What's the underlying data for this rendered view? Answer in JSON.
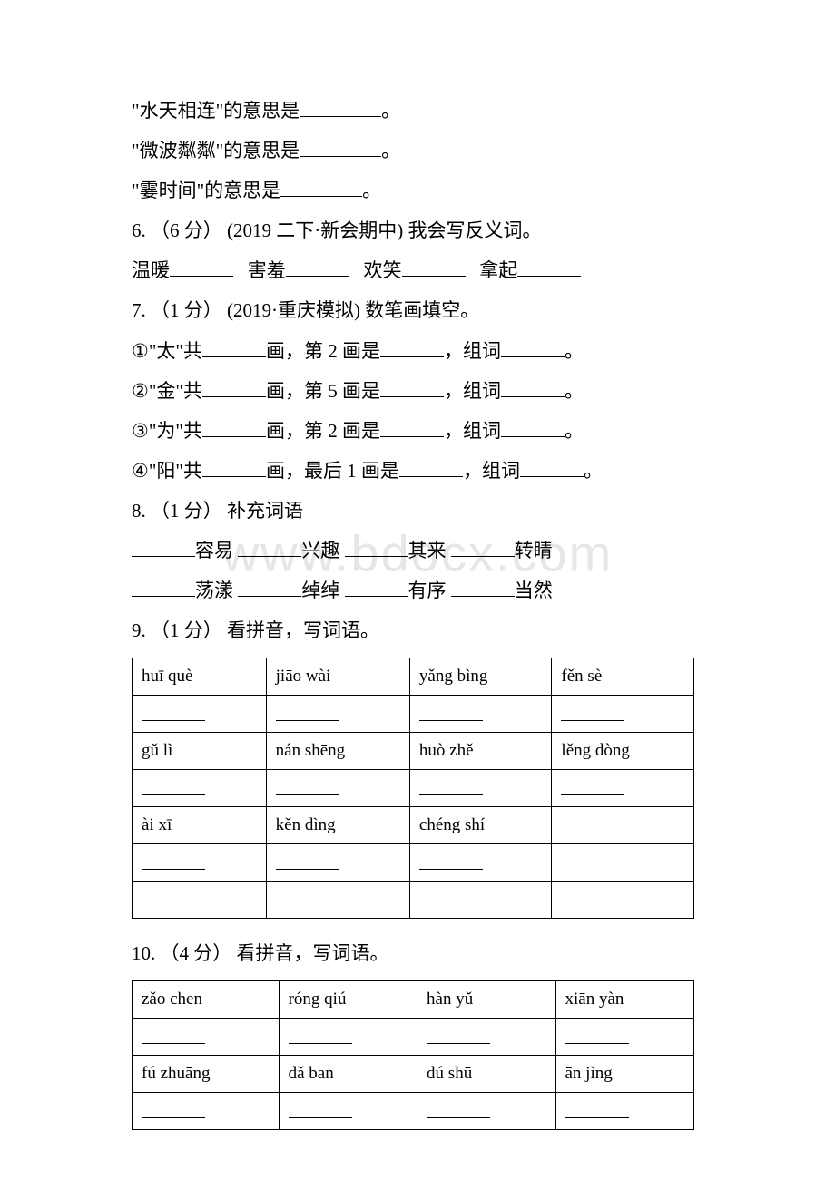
{
  "watermark": "www.bdocx.com",
  "q5": {
    "line1_pre": "\"水天相连\"的意思是",
    "line2_pre": "\"微波粼粼\"的意思是",
    "line3_pre": "\"霎时间\"的意思是",
    "period": "。"
  },
  "q6": {
    "header": "6. （6 分） (2019 二下·新会期中) 我会写反义词。",
    "items": [
      "温暖",
      "害羞",
      "欢笑",
      "拿起"
    ]
  },
  "q7": {
    "header": "7. （1 分） (2019·重庆模拟) 数笔画填空。",
    "rows": [
      {
        "n": "①",
        "char": "太",
        "mid": "画，第 2 画是",
        "tail": "，组词"
      },
      {
        "n": "②",
        "char": "金",
        "mid": "画，第 5 画是",
        "tail": "，组词"
      },
      {
        "n": "③",
        "char": "为",
        "mid": "画，第 2 画是",
        "tail": "，组词"
      },
      {
        "n": "④",
        "char": "阳",
        "mid": "画，最后 1 画是",
        "tail": "，组词"
      }
    ],
    "gong": "共",
    "period": "。"
  },
  "q8": {
    "header": "8. （1 分） 补充词语",
    "row1": [
      "容易",
      "兴趣",
      "其来",
      "转睛"
    ],
    "row2": [
      "荡漾",
      "绰绰",
      "有序",
      "当然"
    ]
  },
  "q9": {
    "header": "9. （1 分） 看拼音，写词语。",
    "cells": [
      [
        "huī  què",
        "jiāo  wài",
        "yǎng  bìng",
        "fěn  sè"
      ],
      [
        "",
        "",
        "",
        ""
      ],
      [
        "gǔ  lì",
        "nán  shēng",
        "huò  zhě",
        "lěng  dòng"
      ],
      [
        "",
        "",
        "",
        ""
      ],
      [
        "ài  xī",
        "kěn  dìng",
        "chéng  shí",
        ""
      ],
      [
        "",
        "",
        "",
        ""
      ],
      [
        "",
        "",
        "",
        ""
      ]
    ]
  },
  "q10": {
    "header": "10. （4 分） 看拼音，写词语。",
    "cells": [
      [
        "zǎo  chen",
        "róng  qiú",
        "hàn  yǔ",
        "xiān  yàn"
      ],
      [
        "",
        "",
        "",
        ""
      ],
      [
        "fú  zhuāng",
        "dǎ  ban",
        "dú  shū",
        "ān  jìng"
      ],
      [
        "",
        "",
        "",
        ""
      ]
    ]
  }
}
